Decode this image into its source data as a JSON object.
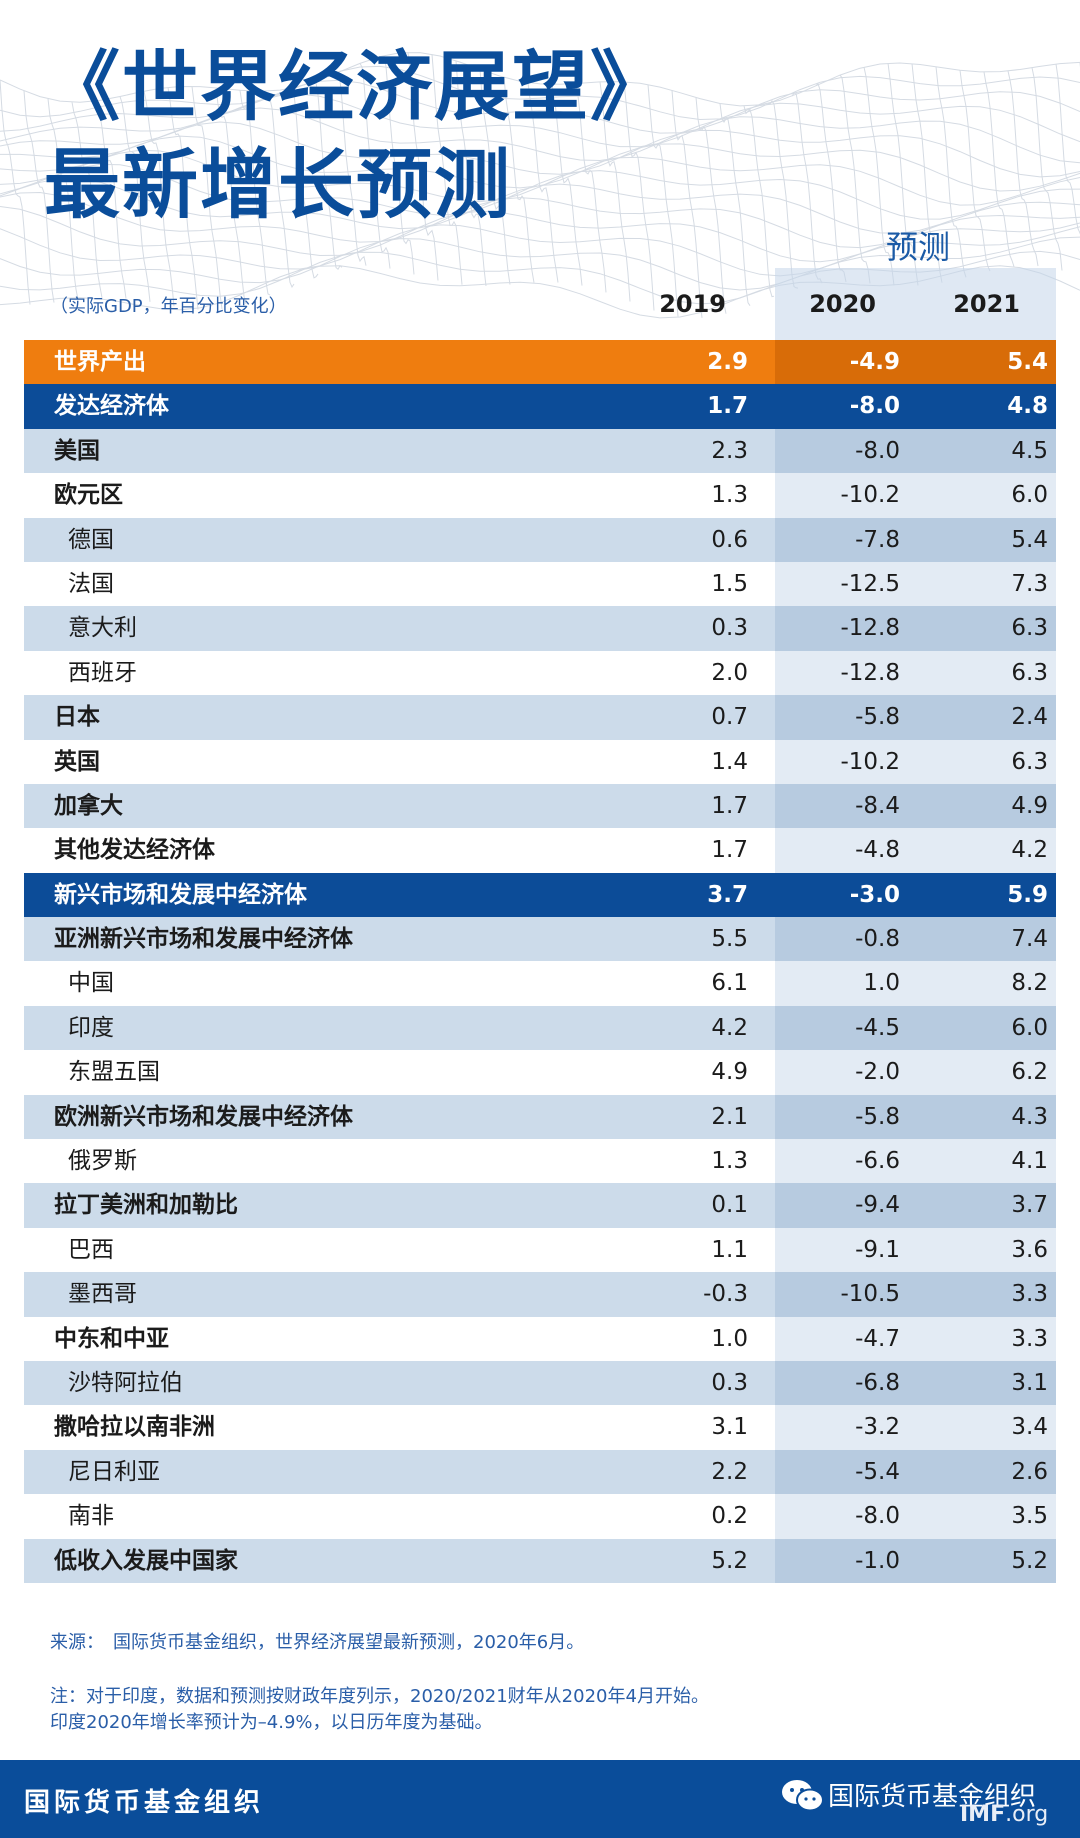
{
  "title_line1": "《世界经济展望》",
  "title_line2": "最新增长预测",
  "forecast_label": "预测",
  "units": "（实际GDP，年百分比变化）",
  "years": [
    "2019",
    "2020",
    "2021"
  ],
  "rows": [
    {
      "label": "世界产出",
      "v2019": "2.9",
      "v2020": "-4.9",
      "v2021": "5.4",
      "style": "world"
    },
    {
      "label": "发达经济体",
      "v2019": "1.7",
      "v2020": "-8.0",
      "v2021": "4.8",
      "style": "group"
    },
    {
      "label": "美国",
      "v2019": "2.3",
      "v2020": "-8.0",
      "v2021": "4.5",
      "style": "shade",
      "level": 1
    },
    {
      "label": "欧元区",
      "v2019": "1.3",
      "v2020": "-10.2",
      "v2021": "6.0",
      "style": "plain",
      "level": 1
    },
    {
      "label": "德国",
      "v2019": "0.6",
      "v2020": "-7.8",
      "v2021": "5.4",
      "style": "shade",
      "level": 2
    },
    {
      "label": "法国",
      "v2019": "1.5",
      "v2020": "-12.5",
      "v2021": "7.3",
      "style": "plain",
      "level": 2
    },
    {
      "label": "意大利",
      "v2019": "0.3",
      "v2020": "-12.8",
      "v2021": "6.3",
      "style": "shade",
      "level": 2
    },
    {
      "label": "西班牙",
      "v2019": "2.0",
      "v2020": "-12.8",
      "v2021": "6.3",
      "style": "plain",
      "level": 2
    },
    {
      "label": "日本",
      "v2019": "0.7",
      "v2020": "-5.8",
      "v2021": "2.4",
      "style": "shade",
      "level": 1
    },
    {
      "label": "英国",
      "v2019": "1.4",
      "v2020": "-10.2",
      "v2021": "6.3",
      "style": "plain",
      "level": 1
    },
    {
      "label": "加拿大",
      "v2019": "1.7",
      "v2020": "-8.4",
      "v2021": "4.9",
      "style": "shade",
      "level": 1
    },
    {
      "label": "其他发达经济体",
      "v2019": "1.7",
      "v2020": "-4.8",
      "v2021": "4.2",
      "style": "plain",
      "level": 1
    },
    {
      "label": "新兴市场和发展中经济体",
      "v2019": "3.7",
      "v2020": "-3.0",
      "v2021": "5.9",
      "style": "group"
    },
    {
      "label": "亚洲新兴市场和发展中经济体",
      "v2019": "5.5",
      "v2020": "-0.8",
      "v2021": "7.4",
      "style": "shade",
      "level": 1
    },
    {
      "label": "中国",
      "v2019": "6.1",
      "v2020": "1.0",
      "v2021": "8.2",
      "style": "plain",
      "level": 2
    },
    {
      "label": "印度",
      "v2019": "4.2",
      "v2020": "-4.5",
      "v2021": "6.0",
      "style": "shade",
      "level": 2
    },
    {
      "label": "东盟五国",
      "v2019": "4.9",
      "v2020": "-2.0",
      "v2021": "6.2",
      "style": "plain",
      "level": 2
    },
    {
      "label": "欧洲新兴市场和发展中经济体",
      "v2019": "2.1",
      "v2020": "-5.8",
      "v2021": "4.3",
      "style": "shade",
      "level": 1
    },
    {
      "label": "俄罗斯",
      "v2019": "1.3",
      "v2020": "-6.6",
      "v2021": "4.1",
      "style": "plain",
      "level": 2
    },
    {
      "label": "拉丁美洲和加勒比",
      "v2019": "0.1",
      "v2020": "-9.4",
      "v2021": "3.7",
      "style": "shade",
      "level": 1
    },
    {
      "label": "巴西",
      "v2019": "1.1",
      "v2020": "-9.1",
      "v2021": "3.6",
      "style": "plain",
      "level": 2
    },
    {
      "label": "墨西哥",
      "v2019": "-0.3",
      "v2020": "-10.5",
      "v2021": "3.3",
      "style": "shade",
      "level": 2
    },
    {
      "label": "中东和中亚",
      "v2019": "1.0",
      "v2020": "-4.7",
      "v2021": "3.3",
      "style": "plain",
      "level": 1
    },
    {
      "label": "沙特阿拉伯",
      "v2019": "0.3",
      "v2020": "-6.8",
      "v2021": "3.1",
      "style": "shade",
      "level": 2
    },
    {
      "label": "撒哈拉以南非洲",
      "v2019": "3.1",
      "v2020": "-3.2",
      "v2021": "3.4",
      "style": "plain",
      "level": 1
    },
    {
      "label": "尼日利亚",
      "v2019": "2.2",
      "v2020": "-5.4",
      "v2021": "2.6",
      "style": "shade",
      "level": 2
    },
    {
      "label": "南非",
      "v2019": "0.2",
      "v2020": "-8.0",
      "v2021": "3.5",
      "style": "plain",
      "level": 2
    },
    {
      "label": "低收入发展中国家",
      "v2019": "5.2",
      "v2020": "-1.0",
      "v2021": "5.2",
      "style": "shade",
      "level": 1
    }
  ],
  "source": "来源：　国际货币基金组织，世界经济展望最新预测，2020年6月。",
  "note_line1": "注：对于印度，数据和预测按财政年度列示，2020/2021财年从2020年4月开始。",
  "note_line2": "印度2020年增长率预计为–4.9%，以日历年度为基础。",
  "footer": {
    "org_name": "国际货币基金组织",
    "wechat_name": "国际货币基金组织",
    "site_bold": "IMF",
    "site_rest": ".org"
  },
  "colors": {
    "title_blue": "#0a4d9a",
    "world_orange": "#ef7d0f",
    "group_blue": "#0c4c98",
    "row_shade": "#ccdbea"
  }
}
